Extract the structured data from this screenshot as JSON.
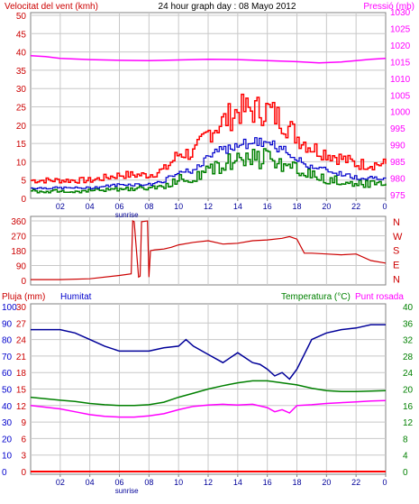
{
  "colors": {
    "frame": "#808080",
    "grid": "#c8c8c8",
    "wind_max": "#ff0000",
    "wind_avg": "#0000cc",
    "wind_min": "#008000",
    "pressure": "#ff00ff",
    "direction": "#cc0000",
    "rain": "#ff0000",
    "humidity": "#000099",
    "temperature": "#008000",
    "dew_point": "#ff00ff",
    "title": "#000000",
    "rain_axis": "#cc0000",
    "hum_axis": "#0000cc",
    "temp_axis": "#008000"
  },
  "title": "24 hour graph day : 08 Mayo 2012",
  "top_panel": {
    "left_label": "Velocitat del vent (kmh)",
    "right_label": "Pressió (mb)",
    "left_ticks": [
      "50",
      "45",
      "40",
      "35",
      "30",
      "25",
      "20",
      "15",
      "10",
      "5",
      "0"
    ],
    "right_ticks": [
      "1030",
      "1025",
      "1020",
      "1015",
      "1010",
      "1005",
      "1000",
      "995",
      "990",
      "985",
      "980",
      "975"
    ]
  },
  "mid_panel": {
    "left_ticks": [
      "360",
      "270",
      "180",
      "90",
      "0"
    ],
    "right_letters": [
      "N",
      "W",
      "S",
      "E",
      "N"
    ]
  },
  "bottom_panel": {
    "rain_label": "Pluja (mm)",
    "hum_label": "Humitat",
    "temp_label": "Temperatura (°C)",
    "dew_label": "Punt rosada",
    "rain_ticks": [
      "30",
      "27",
      "24",
      "21",
      "18",
      "15",
      "12",
      "9",
      "6",
      "3",
      "0"
    ],
    "hum_ticks": [
      "100",
      "90",
      "80",
      "70",
      "60",
      "50",
      "40",
      "30",
      "20",
      "10",
      "0"
    ],
    "temp_ticks": [
      "40",
      "36",
      "32",
      "28",
      "24",
      "20",
      "16",
      "12",
      "8",
      "4",
      "0"
    ]
  },
  "x_ticks": [
    "02",
    "04",
    "06",
    "08",
    "10",
    "12",
    "14",
    "16",
    "18",
    "20",
    "22",
    "0"
  ],
  "sunrise_label": "sunrise",
  "chart_data": [
    {
      "type": "line",
      "x_range_hours": [
        0,
        24
      ],
      "series": [
        {
          "name": "Velocitat del vent (kmh)",
          "axis": "left",
          "hours": [
            0,
            2,
            4,
            6,
            7,
            8,
            9,
            10,
            11,
            12,
            13,
            14,
            15,
            16,
            17,
            18,
            19,
            20,
            21,
            22,
            23,
            24
          ],
          "values": [
            3,
            3,
            3,
            4,
            4,
            4,
            5,
            8,
            8,
            12,
            14,
            16,
            16,
            16,
            14,
            11,
            9,
            8,
            7,
            6,
            6,
            6
          ]
        },
        {
          "name": "Pressió (mb)",
          "axis": "right",
          "hours": [
            0,
            1,
            2,
            4,
            6,
            8,
            10,
            12,
            14,
            16,
            18,
            19.5,
            21,
            22,
            23,
            24
          ],
          "values": [
            1016.8,
            1016.5,
            1016.0,
            1015.6,
            1015.4,
            1015.3,
            1015.5,
            1015.7,
            1015.6,
            1015.3,
            1015.0,
            1014.6,
            1014.9,
            1015.3,
            1015.7,
            1016.0
          ]
        }
      ],
      "left_ylim": [
        0,
        50
      ],
      "right_ylim": [
        975,
        1030
      ]
    },
    {
      "type": "line",
      "x_range_hours": [
        0,
        24
      ],
      "series": [
        {
          "name": "Direcció del vent",
          "hours": [
            0,
            2,
            4,
            6,
            6.8,
            6.9,
            7.0,
            7.3,
            7.4,
            7.5,
            7.9,
            8.0,
            8.1,
            8.4,
            9,
            9.5,
            10,
            11,
            12,
            13,
            14,
            15,
            16,
            17,
            17.5,
            18,
            18.5,
            19,
            20,
            21,
            22,
            23,
            24
          ],
          "values": [
            5,
            5,
            10,
            30,
            40,
            360,
            355,
            20,
            25,
            355,
            360,
            20,
            180,
            185,
            190,
            200,
            215,
            230,
            240,
            220,
            225,
            240,
            245,
            255,
            265,
            250,
            165,
            165,
            160,
            155,
            160,
            120,
            105
          ]
        }
      ],
      "ylim": [
        0,
        360
      ]
    },
    {
      "type": "line",
      "x_range_hours": [
        0,
        24
      ],
      "series": [
        {
          "name": "Pluja (mm)",
          "axis": "rain",
          "hours": [
            0,
            24
          ],
          "values": [
            0,
            0
          ]
        },
        {
          "name": "Humitat",
          "axis": "humidity",
          "hours": [
            0,
            2,
            3,
            4,
            5,
            6,
            7,
            8,
            9,
            10,
            10.5,
            11,
            12,
            13,
            14,
            15,
            15.5,
            16,
            16.5,
            17,
            17.5,
            18,
            19,
            20,
            21,
            22,
            23,
            24
          ],
          "values": [
            86,
            86,
            84,
            80,
            76,
            73,
            73,
            73,
            75,
            76,
            80,
            76,
            71,
            66,
            72,
            66,
            65,
            62,
            58,
            60,
            56,
            62,
            80,
            84,
            86,
            87,
            89,
            89
          ]
        },
        {
          "name": "Temperatura (°C)",
          "axis": "temp",
          "hours": [
            0,
            2,
            3,
            4,
            5,
            6,
            7,
            8,
            9,
            10,
            11,
            12,
            13,
            14,
            15,
            16,
            17,
            18,
            19,
            20,
            21,
            22,
            23,
            24
          ],
          "values": [
            18,
            17.3,
            17,
            16.5,
            16.2,
            16,
            16,
            16.2,
            16.8,
            18,
            19,
            20,
            20.8,
            21.5,
            22,
            22,
            21.5,
            21,
            20.2,
            19.6,
            19.4,
            19.4,
            19.5,
            19.6
          ]
        },
        {
          "name": "Punt rosada",
          "axis": "temp",
          "hours": [
            0,
            2,
            3,
            4,
            5,
            6,
            7,
            8,
            9,
            10,
            11,
            12,
            13,
            14,
            15,
            16,
            16.5,
            17,
            17.5,
            18,
            19,
            20,
            21,
            22,
            23,
            24
          ],
          "values": [
            16,
            15.2,
            14.5,
            13.8,
            13.4,
            13.2,
            13.2,
            13.5,
            14,
            15,
            15.8,
            16.1,
            16.3,
            16.1,
            16.3,
            15.5,
            14.5,
            15,
            14.2,
            16,
            16.2,
            16.5,
            16.7,
            16.9,
            17.1,
            17.2
          ]
        }
      ],
      "rain_ylim": [
        0,
        30
      ],
      "humidity_ylim": [
        0,
        100
      ],
      "temp_ylim": [
        0,
        40
      ]
    }
  ]
}
